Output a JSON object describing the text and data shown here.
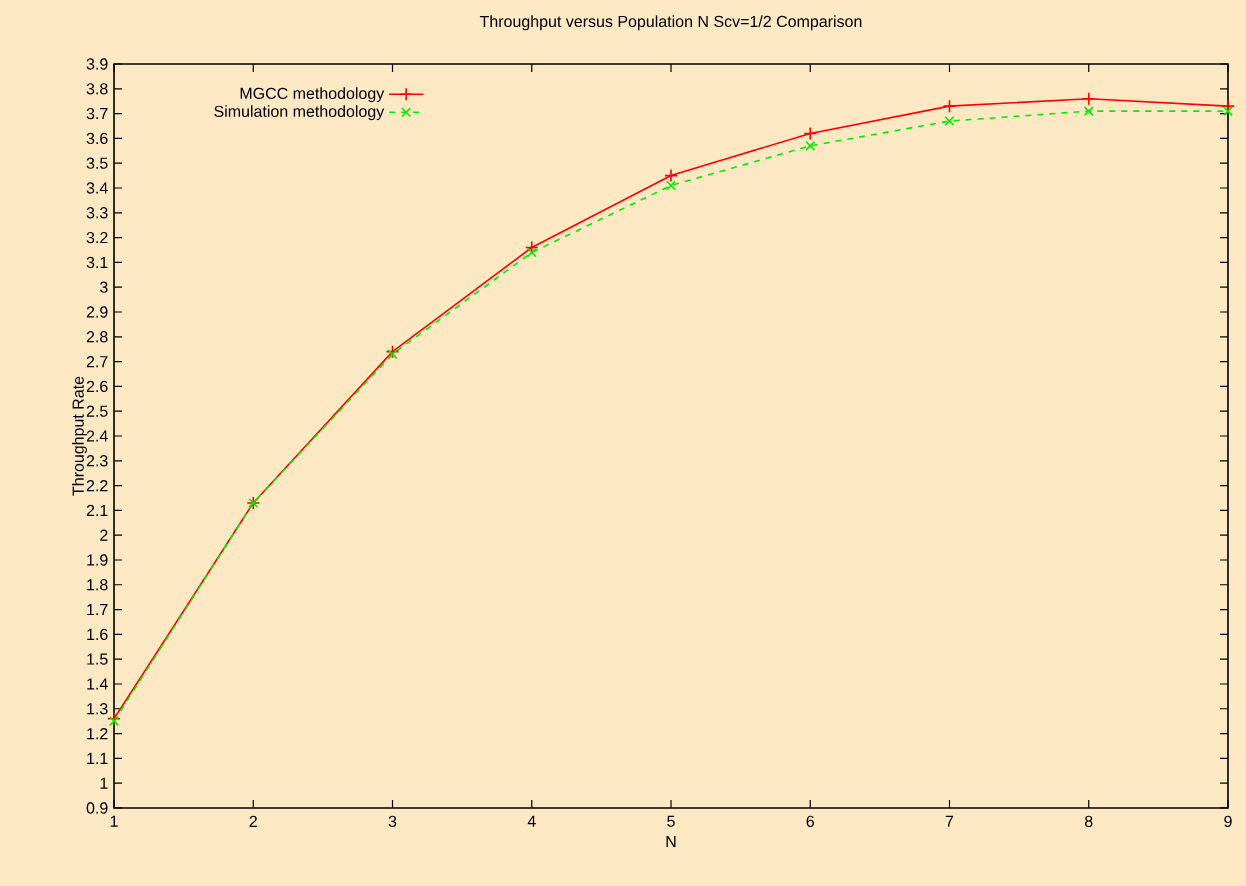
{
  "chart_data": {
    "type": "line",
    "title": "Throughput versus Population N Scv=1/2 Comparison",
    "xlabel": "N",
    "ylabel": "Throughput Rate",
    "x": [
      1,
      2,
      3,
      4,
      5,
      6,
      7,
      8,
      9
    ],
    "series": [
      {
        "name": "MGCC methodology",
        "color": "#ff0000",
        "marker": "plus",
        "line_style": "solid",
        "values": [
          1.26,
          2.13,
          2.74,
          3.16,
          3.45,
          3.62,
          3.73,
          3.76,
          3.73
        ]
      },
      {
        "name": "Simulation methodology",
        "color": "#00ee00",
        "marker": "cross",
        "line_style": "dashed",
        "values": [
          1.25,
          2.13,
          2.73,
          3.14,
          3.41,
          3.57,
          3.67,
          3.71,
          3.71
        ]
      }
    ],
    "xlim": [
      1,
      9
    ],
    "ylim": [
      0.9,
      3.9
    ],
    "xticks": [
      1,
      2,
      3,
      4,
      5,
      6,
      7,
      8,
      9
    ],
    "yticks": [
      0.9,
      1,
      1.1,
      1.2,
      1.3,
      1.4,
      1.5,
      1.6,
      1.7,
      1.8,
      1.9,
      2,
      2.1,
      2.2,
      2.3,
      2.4,
      2.5,
      2.6,
      2.7,
      2.8,
      2.9,
      3,
      3.1,
      3.2,
      3.3,
      3.4,
      3.5,
      3.6,
      3.7,
      3.8,
      3.9
    ],
    "grid": false,
    "legend": "top left"
  }
}
